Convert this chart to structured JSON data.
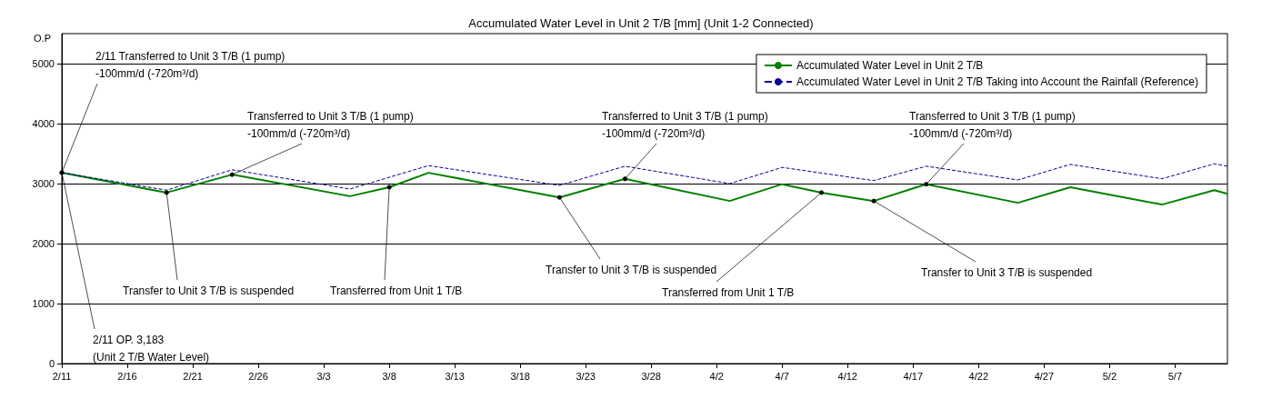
{
  "chart_data": {
    "type": "line",
    "title": "Accumulated Water Level in Unit 2 T/B [mm] (Unit 1-2 Connected)",
    "ylabel": "O.P",
    "xlim": [
      "--02-11",
      "--05-11"
    ],
    "ylim": [
      0,
      5500
    ],
    "xticks": [
      {
        "value": "--02-11",
        "label": "2/11"
      },
      {
        "value": "--02-16",
        "label": "2/16"
      },
      {
        "value": "--02-21",
        "label": "2/21"
      },
      {
        "value": "--02-26",
        "label": "2/26"
      },
      {
        "value": "--03-03",
        "label": "3/3"
      },
      {
        "value": "--03-08",
        "label": "3/8"
      },
      {
        "value": "--03-13",
        "label": "3/13"
      },
      {
        "value": "--03-18",
        "label": "3/18"
      },
      {
        "value": "--03-23",
        "label": "3/23"
      },
      {
        "value": "--03-28",
        "label": "3/28"
      },
      {
        "value": "--04-02",
        "label": "4/2"
      },
      {
        "value": "--04-07",
        "label": "4/7"
      },
      {
        "value": "--04-12",
        "label": "4/12"
      },
      {
        "value": "--04-17",
        "label": "4/17"
      },
      {
        "value": "--04-22",
        "label": "4/22"
      },
      {
        "value": "--04-27",
        "label": "4/27"
      },
      {
        "value": "--05-02",
        "label": "5/2"
      },
      {
        "value": "--05-07",
        "label": "5/7"
      }
    ],
    "yticks": [
      0,
      1000,
      2000,
      3000,
      4000,
      5000
    ],
    "grid": "y",
    "legend": "top right",
    "marker": "none",
    "series": [
      {
        "name": "Accumulated Water Level in Unit 2 T/B",
        "color": "#008000",
        "line_style": "solid",
        "x": [
          "--02-11",
          "--02-19",
          "--02-24",
          "--03-05",
          "--03-08",
          "--03-11",
          "--03-21",
          "--03-26",
          "--04-03",
          "--04-07",
          "--04-10",
          "--04-14",
          "--04-18",
          "--04-25",
          "--04-29",
          "--05-06",
          "--05-10",
          "--05-11"
        ],
        "values": [
          3183,
          2850,
          3150,
          2790,
          2940,
          3180,
          2770,
          3080,
          2710,
          2990,
          2850,
          2710,
          2990,
          2680,
          2940,
          2650,
          2890,
          2830
        ]
      },
      {
        "name": "Accumulated Water Level in Unit 2 T/B Taking into Account the Rainfall (Reference)",
        "color": "#000099",
        "line_style": "dashed",
        "x": [
          "--02-11",
          "--02-19",
          "--02-24",
          "--03-05",
          "--03-11",
          "--03-21",
          "--03-26",
          "--04-03",
          "--04-07",
          "--04-14",
          "--04-18",
          "--04-25",
          "--04-29",
          "--05-06",
          "--05-10",
          "--05-11"
        ],
        "values": [
          3183,
          2890,
          3230,
          2910,
          3300,
          2970,
          3290,
          3000,
          3270,
          3050,
          3290,
          3060,
          3320,
          3080,
          3330,
          3290
        ]
      }
    ],
    "annotations": [
      {
        "text": "2/11 Transferred to Unit 3 T/B (1 pump)\n-100mm/d (-720m³/d)",
        "x": "--02-11",
        "y": 3183
      },
      {
        "text": "Transferred to Unit 3 T/B (1 pump)\n-100mm/d (-720m³/d)",
        "x": "--02-24",
        "y": 3150
      },
      {
        "text": "Transferred to Unit 3 T/B (1 pump)\n-100mm/d (-720m³/d)",
        "x": "--03-26",
        "y": 3080
      },
      {
        "text": "Transferred to Unit 3 T/B (1 pump)\n-100mm/d (-720m³/d)",
        "x": "--04-18",
        "y": 2990
      },
      {
        "text": "Transfer to Unit 3 T/B is suspended",
        "x": "--02-19",
        "y": 2850
      },
      {
        "text": "Transfer to Unit 3 T/B is suspended",
        "x": "--03-21",
        "y": 2770
      },
      {
        "text": "Transfer to Unit 3 T/B is suspended",
        "x": "--04-14",
        "y": 2710
      },
      {
        "text": "Transferred from Unit 1 T/B",
        "x": "--03-08",
        "y": 2940
      },
      {
        "text": "Transferred from Unit 1 T/B",
        "x": "--04-10",
        "y": 2850
      },
      {
        "text": "2/11 OP. 3,183\n(Unit 2 T/B Water Level)",
        "x": "--02-11",
        "y": 3183
      }
    ]
  }
}
